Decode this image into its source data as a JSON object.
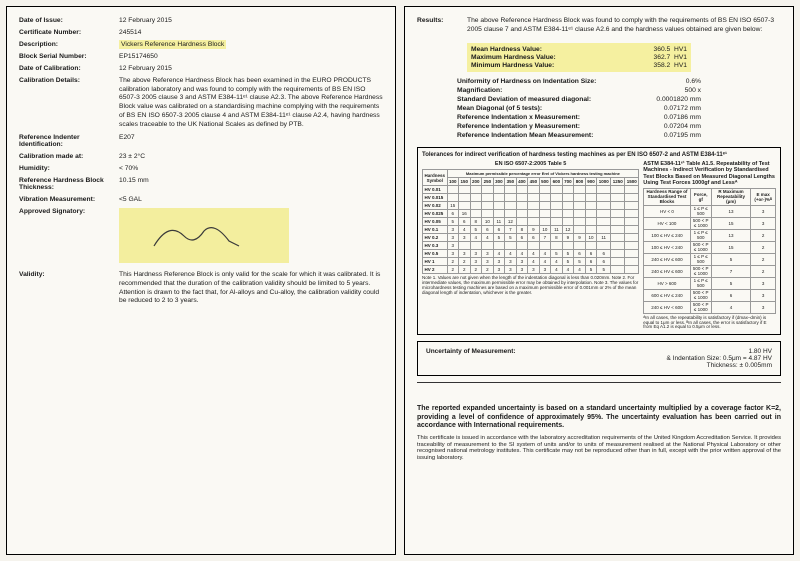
{
  "left": {
    "date_of_issue": {
      "label": "Date of Issue:",
      "value": "12 February 2015"
    },
    "cert_no": {
      "label": "Certificate Number:",
      "value": "245514"
    },
    "description": {
      "label": "Description:",
      "value": "Vickers Reference Hardness Block"
    },
    "serial": {
      "label": "Block Serial Number:",
      "value": "EP15174650"
    },
    "date_cal": {
      "label": "Date of Calibration:",
      "value": "12 February 2015"
    },
    "cal_details": {
      "label": "Calibration Details:",
      "value": "The above Reference Hardness Block has been examined in the EURO PRODUCTS calibration laboratory and was found to comply with the requirements of BS EN ISO 6507-3 2005 clause 3 and ASTM E384-11ᵉ¹ clause A2.3. The above Reference Hardness Block value was calibrated on a standardising machine complying with the requirements of BS EN ISO 6507-3 2005 clause 4 and ASTM E384-11ᵉ¹ clause A2.4, having hardness scales traceable to the UK National Scales as defined by PTB."
    },
    "indenter": {
      "label": "Reference Indenter Identification:",
      "value": "E207"
    },
    "cal_at": {
      "label": "Calibration made at:",
      "value": "23 ± 2°C"
    },
    "humidity": {
      "label": "Humidity:",
      "value": "< 70%"
    },
    "thickness": {
      "label": "Reference Hardness Block Thickness:",
      "value": "10.15 mm"
    },
    "vibration": {
      "label": "Vibration Measurement:",
      "value": "<5 GAL"
    },
    "signatory": {
      "label": "Approved Signatory:"
    },
    "validity": {
      "label": "Validity:",
      "value": "This Hardness Reference Block is only valid for the scale for which it was calibrated. It is recommended that the duration of the calibration validity should be limited to 5 years. Attention is drawn to the fact that, for Al-alloys and Cu-alloy, the calibration validity could be reduced to 2 to 3 years."
    }
  },
  "right": {
    "results": {
      "label": "Results:",
      "value": "The above Reference Hardness Block was found to comply with the requirements of BS EN ISO 6507-3 2005 clause 7 and ASTM E384-11ᵉ¹ clause A2.6 and the hardness values obtained are given below:"
    },
    "hl_rows": [
      {
        "l": "Mean Hardness Value:",
        "v": "360.5",
        "s": "HV1"
      },
      {
        "l": "Maximum Hardness Value:",
        "v": "362.7",
        "s": "HV1"
      },
      {
        "l": "Minimum Hardness Value:",
        "v": "358.2",
        "s": "HV1"
      }
    ],
    "metrics": [
      {
        "l": "Uniformity of Hardness on Indentation Size:",
        "v": "0.6%"
      },
      {
        "l": "Magnification:",
        "v": "500 x"
      },
      {
        "l": "Standard Deviation of measured diagonal:",
        "v": "0.0001820 mm"
      },
      {
        "l": "Mean Diagonal (of 5 tests):",
        "v": "0.07172 mm"
      },
      {
        "l": "Reference Indentation x Measurement:",
        "v": "0.07186 mm"
      },
      {
        "l": "Reference Indentation y Measurement:",
        "v": "0.07204 mm"
      },
      {
        "l": "Reference Indentation Mean Measurement:",
        "v": "0.07195 mm"
      }
    ],
    "tolbox_title": "Tolerances for indirect verification of hardness testing machines as per EN ISO 6507-2 and ASTM E384-11ᵉ¹",
    "tol_left_title": "EN ISO 6507-2:2005 Table 5",
    "tol_left_sub": "Maximum permissible percentage error Erel of Vickers hardness testing machine",
    "tol_right_title": "ASTM E384-11ᵉ¹ Table A1.5. Repeatability of Test Machines - Indirect Verification by Standardised Test Blocks Based on Measured Diagonal Lengths Using Test Forces 1000gf and Lessᴬ",
    "tol_left_headers": [
      "Hardness Symbol",
      "100",
      "150",
      "200",
      "250",
      "300",
      "350",
      "400",
      "450",
      "500",
      "600",
      "700",
      "800",
      "900",
      "1000",
      "1250",
      "1500"
    ],
    "tol_left_rows": [
      [
        "HV 0.01",
        "",
        "",
        "",
        "",
        "",
        "",
        "",
        "",
        "",
        "",
        "",
        "",
        "",
        "",
        "",
        ""
      ],
      [
        "HV 0.015",
        "",
        "",
        "",
        "",
        "",
        "",
        "",
        "",
        "",
        "",
        "",
        "",
        "",
        "",
        "",
        ""
      ],
      [
        "HV 0.02",
        "15",
        "",
        "",
        "",
        "",
        "",
        "",
        "",
        "",
        "",
        "",
        "",
        "",
        "",
        "",
        ""
      ],
      [
        "HV 0.025",
        "6",
        "16",
        "",
        "",
        "",
        "",
        "",
        "",
        "",
        "",
        "",
        "",
        "",
        "",
        "",
        ""
      ],
      [
        "HV 0.05",
        "5",
        "6",
        "8",
        "10",
        "11",
        "12",
        "",
        "",
        "",
        "",
        "",
        "",
        "",
        "",
        "",
        ""
      ],
      [
        "HV 0.1",
        "3",
        "4",
        "5",
        "6",
        "6",
        "7",
        "8",
        "9",
        "10",
        "11",
        "12",
        "",
        "",
        "",
        "",
        ""
      ],
      [
        "HV 0.2",
        "3",
        "3",
        "4",
        "4",
        "5",
        "5",
        "6",
        "6",
        "7",
        "8",
        "9",
        "9",
        "10",
        "11",
        "",
        ""
      ],
      [
        "HV 0.3",
        "3",
        "",
        "",
        "",
        "",
        "",
        "",
        "",
        "",
        "",
        "",
        "",
        "",
        "",
        "",
        ""
      ],
      [
        "HV 0.5",
        "3",
        "3",
        "3",
        "3",
        "4",
        "4",
        "4",
        "4",
        "4",
        "5",
        "5",
        "6",
        "6",
        "6",
        "",
        ""
      ],
      [
        "HV 1",
        "2",
        "2",
        "3",
        "3",
        "3",
        "3",
        "3",
        "4",
        "4",
        "4",
        "5",
        "5",
        "6",
        "6",
        "",
        ""
      ],
      [
        "HV 2",
        "2",
        "2",
        "2",
        "2",
        "3",
        "3",
        "3",
        "3",
        "3",
        "4",
        "4",
        "4",
        "5",
        "5",
        "",
        ""
      ]
    ],
    "tol_left_notes": "Note 1. Values are not given when the length of the indentation diagonal is less than 0.020mm.\nNote 2. For intermediate values, the maximum permissible error may be obtained by interpolation.\nNote 3. The values for microhardness testing machines are based on a maximum permissible error of 0.001mm or 2% of the mean diagonal length of indentation, whichever is the greater.",
    "tol_right_headers": [
      "Hardness Range of Standardised Test Blocks",
      "Force, gf",
      "R Maximum Repeatability (μm)",
      "E max (+or-)%ᴮ"
    ],
    "tol_right_rows": [
      [
        "HV < 0",
        "1 ≤ P ≤ 500",
        "13",
        "3"
      ],
      [
        "HV < 100",
        "500 < P ≤ 1000",
        "15",
        "3"
      ],
      [
        "100 ≤ HV ≤ 240",
        "1 ≤ P ≤ 500",
        "13",
        "2"
      ],
      [
        "100 ≤ HV < 240",
        "500 < P ≤ 1000",
        "15",
        "2"
      ],
      [
        "240 ≤ HV ≤ 600",
        "1 ≤ P ≤ 500",
        "5",
        "2"
      ],
      [
        "240 ≤ HV ≤ 600",
        "500 < P ≤ 1000",
        "7",
        "2"
      ],
      [
        "HV > 600",
        "1 ≤ P ≤ 500",
        "5",
        "3"
      ],
      [
        "600 ≤ HV ≤ 240",
        "500 < P ≤ 1000",
        "6",
        "3"
      ],
      [
        "240 ≤ HV < 600",
        "500 < P ≤ 1000",
        "4",
        "3"
      ]
    ],
    "tol_right_notes": "ᴬIn all cases, the repeatability is satisfactory if (dmax–dmin) is equal to 1μm or less.\nᴮIn all cases, the error is satisfactory if E from Eq A1.2 is equal to 0.5μm or less.",
    "uncert": {
      "label": "Uncertainty of Measurement:",
      "v1": "1.80 HV",
      "v2": "& Indentation Size: 0.5μm = 4.87 HV",
      "v3": "Thickness:  ± 0.005mm"
    },
    "footer_bold": "The reported expanded uncertainty is based on a standard uncertainty multiplied by a coverage factor K=2, providing a level of confidence of approximately 95%. The uncertainty evaluation has been carried out in accordance with International requirements.",
    "footer_note": "This certificate is issued in accordance with the laboratory accreditation requirements of the United Kingdom Accreditation Service. It provides traceability of measurement to the SI system of units and/or to units of measurement realised at the National Physical Laboratory or other recognised national metrology institutes. This certificate may not be reproduced other than in full, except with the prior written approval of the issuing laboratory."
  },
  "colors": {
    "highlight": "#f5f0a0",
    "paper": "#faf9f4",
    "border": "#000000"
  }
}
